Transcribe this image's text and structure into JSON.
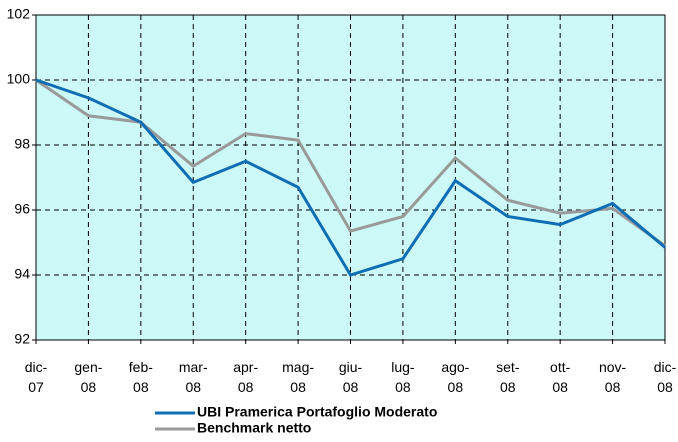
{
  "chart_data": {
    "type": "line",
    "categories": [
      "dic- 07",
      "gen- 08",
      "feb- 08",
      "mar- 08",
      "apr- 08",
      "mag- 08",
      "giu- 08",
      "lug- 08",
      "ago- 08",
      "set- 08",
      "ott- 08",
      "nov- 08",
      "dic- 08"
    ],
    "series": [
      {
        "name": "UBI Pramerica Portafoglio Moderato",
        "color": "#0f6db3",
        "values": [
          100,
          99.45,
          98.7,
          96.85,
          97.5,
          96.7,
          94.0,
          94.5,
          96.9,
          95.8,
          95.55,
          96.2,
          94.85
        ]
      },
      {
        "name": "Benchmark netto",
        "color": "#999999",
        "values": [
          100,
          98.9,
          98.7,
          97.35,
          98.35,
          98.15,
          95.35,
          95.8,
          97.6,
          96.3,
          95.9,
          96.05,
          94.9
        ]
      }
    ],
    "ylim": [
      92,
      102
    ],
    "yticks": [
      92,
      94,
      96,
      98,
      100,
      102
    ],
    "grid": true,
    "background": "#ccf8f8"
  }
}
